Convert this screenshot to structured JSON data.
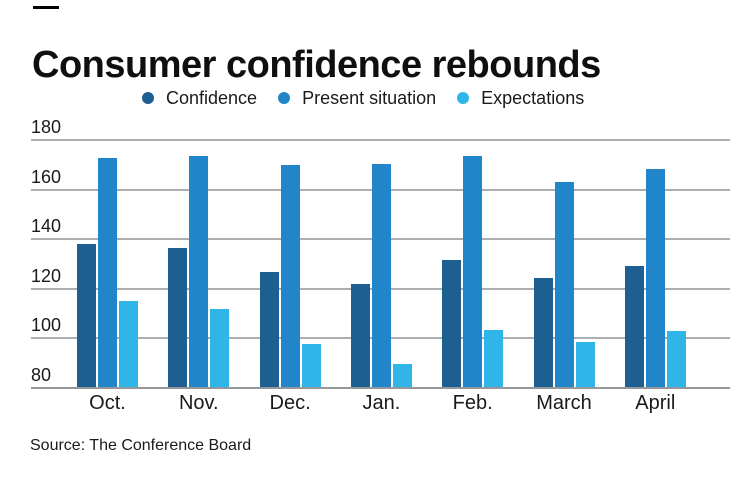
{
  "header": {
    "title": "Consumer confidence rebounds"
  },
  "source_note": "Source: The Conference Board",
  "colors": {
    "confidence": "#1e5f91",
    "present_situation": "#2086c9",
    "expectations": "#30b5e8",
    "gridline": "#abafb2",
    "axis_line": "#94989b",
    "text": "#1a1a1a",
    "brand_tick": "#000000"
  },
  "chart_data": {
    "type": "bar",
    "title": "Consumer confidence rebounds",
    "categories": [
      "Oct.",
      "Nov.",
      "Dec.",
      "Jan.",
      "Feb.",
      "March",
      "April"
    ],
    "series": [
      {
        "name": "Confidence",
        "color": "#1e5f91",
        "values": [
          137.9,
          136.4,
          126.6,
          121.7,
          131.4,
          124.1,
          129.2
        ]
      },
      {
        "name": "Present situation",
        "color": "#2086c9",
        "values": [
          172.8,
          173.6,
          169.9,
          170.2,
          173.5,
          163.0,
          168.3
        ]
      },
      {
        "name": "Expectations",
        "color": "#30b5e8",
        "values": [
          115.1,
          111.6,
          97.7,
          89.4,
          103.4,
          98.3,
          103.0
        ]
      }
    ],
    "y_axis": {
      "min": 80,
      "max": 180,
      "tick_step": 20,
      "ticks": [
        180,
        160,
        140,
        120,
        100,
        80
      ]
    },
    "x_axis_label": "",
    "y_axis_label": "",
    "legend_position": "top",
    "grid": "horizontal",
    "source": "Source: The Conference Board"
  }
}
